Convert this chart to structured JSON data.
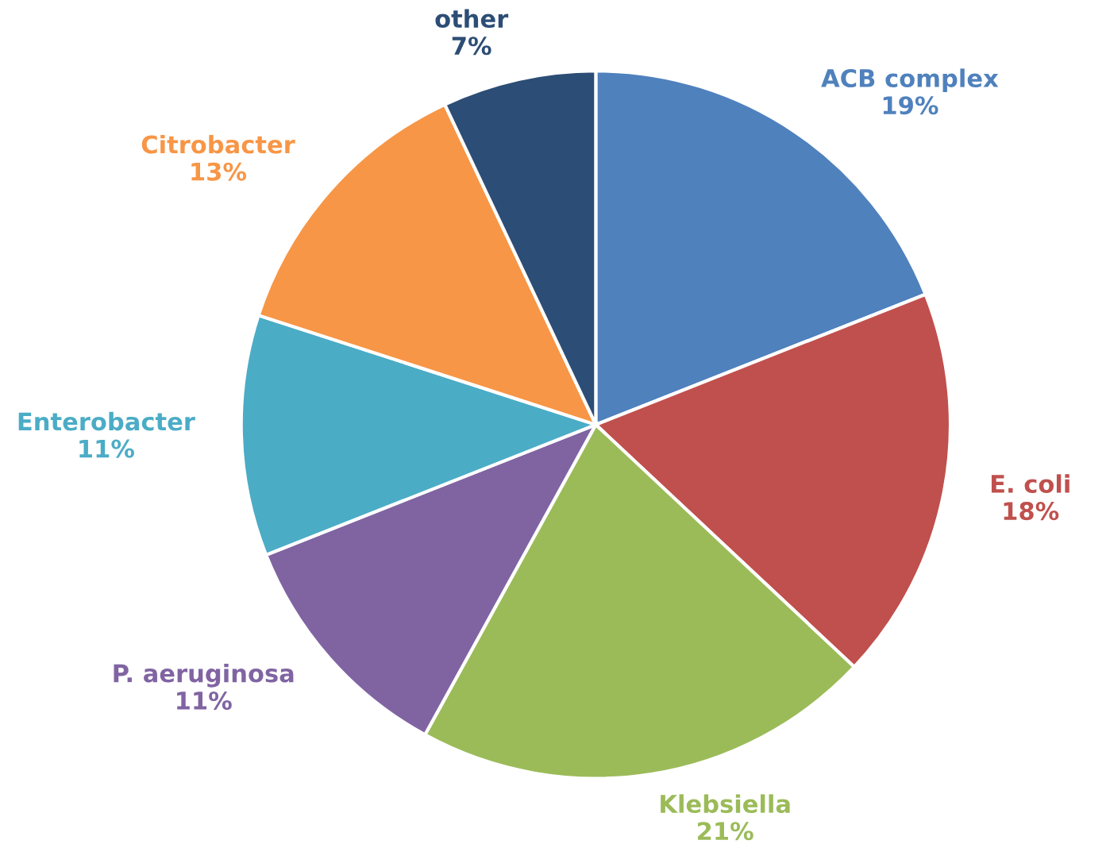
{
  "chart_data": {
    "type": "pie",
    "categories": [
      "ACB complex",
      "E. coli",
      "Klebsiella",
      "P. aeruginosa",
      "Enterobacter",
      "Citrobacter",
      "other"
    ],
    "values": [
      19,
      18,
      21,
      11,
      11,
      13,
      7
    ],
    "value_labels": [
      "19%",
      "18%",
      "21%",
      "11%",
      "11%",
      "13%",
      "7%"
    ],
    "colors": [
      "#4f81bd",
      "#c0504d",
      "#9bbb59",
      "#8064a2",
      "#4bacc6",
      "#f79646",
      "#2c4d75"
    ],
    "legend": false
  }
}
